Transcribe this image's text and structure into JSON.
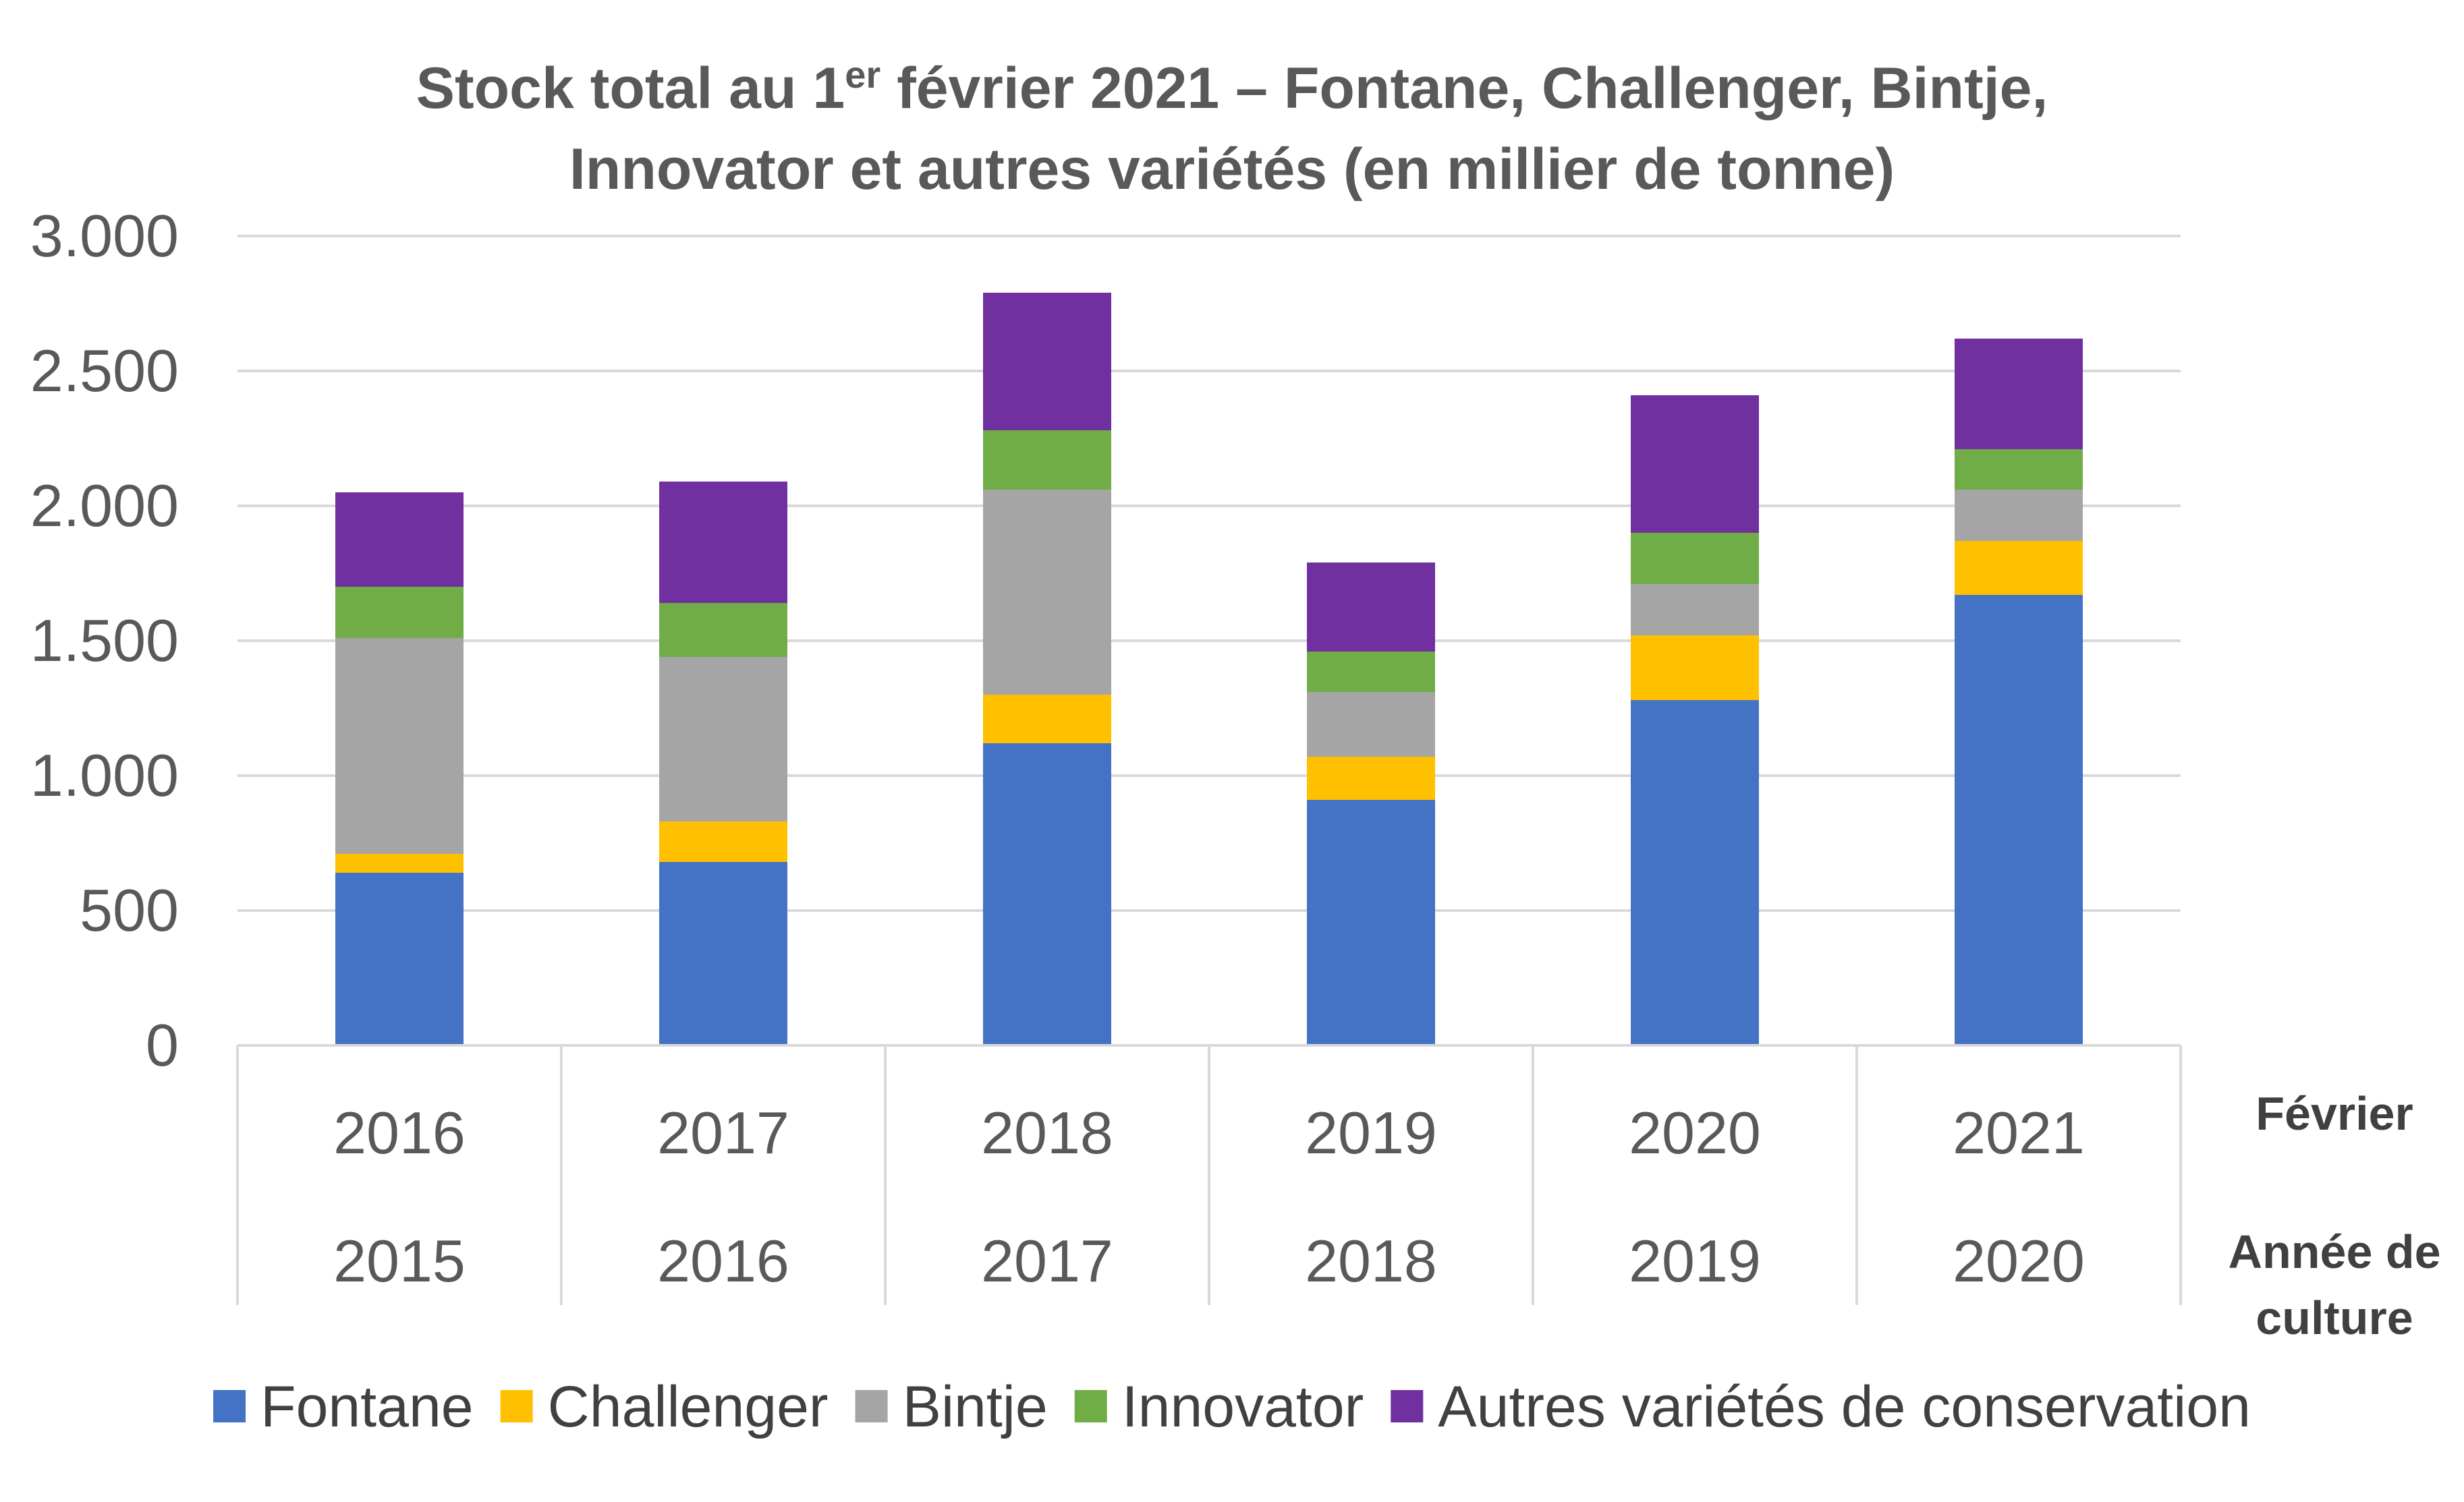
{
  "chart_data": {
    "type": "bar",
    "stacked": true,
    "title": {
      "line1_pre": "Stock total au 1",
      "line1_sup": "er",
      "line1_post": " février 2021 – Fontane, Challenger, Bintje,",
      "line2": "Innovator et autres variétés (en millier de tonne)"
    },
    "ylim": [
      0,
      3000
    ],
    "y_ticks": [
      {
        "value": 0,
        "label": "0"
      },
      {
        "value": 500,
        "label": "500"
      },
      {
        "value": 1000,
        "label": "1.000"
      },
      {
        "value": 1500,
        "label": "1.500"
      },
      {
        "value": 2000,
        "label": "2.000"
      },
      {
        "value": 2500,
        "label": "2.500"
      },
      {
        "value": 3000,
        "label": "3.000"
      }
    ],
    "grid": true,
    "categories_row1": [
      "2016",
      "2017",
      "2018",
      "2019",
      "2020",
      "2021"
    ],
    "categories_row2": [
      "2015",
      "2016",
      "2017",
      "2018",
      "2019",
      "2020"
    ],
    "row1_label": "Février",
    "row2_label_line1": "Année de",
    "row2_label_line2": "culture",
    "legend_position": "bottom",
    "series": [
      {
        "name": "Fontane",
        "color": "#4472C4",
        "values": [
          640,
          680,
          1120,
          910,
          1280,
          1670
        ]
      },
      {
        "name": "Challenger",
        "color": "#FFC000",
        "values": [
          70,
          150,
          180,
          160,
          240,
          200
        ]
      },
      {
        "name": "Bintje",
        "color": "#A5A5A5",
        "values": [
          800,
          610,
          760,
          240,
          190,
          190
        ]
      },
      {
        "name": "Innovator",
        "color": "#70AD47",
        "values": [
          190,
          200,
          220,
          150,
          190,
          150
        ]
      },
      {
        "name": "Autres variétés de conservation",
        "color": "#7030A0",
        "values": [
          350,
          450,
          510,
          330,
          510,
          410
        ]
      }
    ]
  }
}
